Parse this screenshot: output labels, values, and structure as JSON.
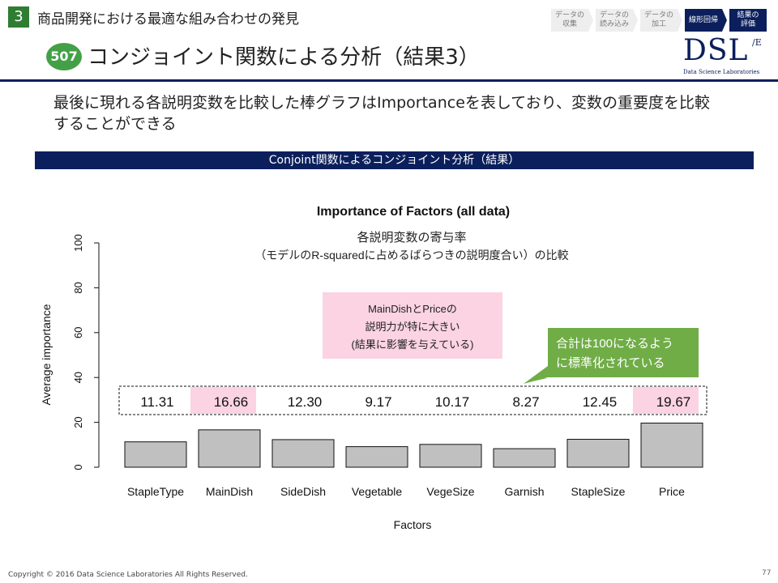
{
  "header": {
    "section_number": "3",
    "section_title": "商品開発における最適な組み合わせの発見",
    "page_badge": "507",
    "page_title": "コンジョイント関数による分析（結果3）",
    "steps": [
      {
        "label": "データの\n収集",
        "active": false
      },
      {
        "label": "データの\n読み込み",
        "active": false
      },
      {
        "label": "データの\n加工",
        "active": false
      },
      {
        "label": "線形回帰",
        "active": true
      },
      {
        "label": "結果の\n評価",
        "active": true
      }
    ],
    "logo": {
      "text": "DSL",
      "sup": "/E",
      "subtitle": "Data Science Laboratories"
    }
  },
  "lead_text": "最後に現れる各説明変数を比較した棒グラフはImportanceを表しており、変数の重要度を比較することができる",
  "banner": "Conjoint関数によるコンジョイント分析（結果）",
  "annotations": {
    "subtitle_line1": "各説明変数の寄与率",
    "subtitle_line2": "（モデルのR-squaredに占めるばらつきの説明度合い）の比較",
    "pink_box": [
      "MainDishとPriceの",
      "説明力が特に大きい",
      "(結果に影響を与えている)"
    ],
    "green_box": [
      "合計は100になるよう",
      "に標準化されている"
    ]
  },
  "chart_data": {
    "type": "bar",
    "title": "Importance of Factors (all data)",
    "xlabel": "Factors",
    "ylabel": "Average importance",
    "categories": [
      "StapleType",
      "MainDish",
      "SideDish",
      "Vegetable",
      "VegeSize",
      "Garnish",
      "StapleSize",
      "Price"
    ],
    "values": [
      11.31,
      16.66,
      12.3,
      9.17,
      10.17,
      8.27,
      12.45,
      19.67
    ],
    "value_labels": [
      "11.31",
      "16.66",
      "12.30",
      "9.17",
      "10.17",
      "8.27",
      "12.45",
      "19.67"
    ],
    "highlighted": [
      "MainDish",
      "Price"
    ],
    "ylim": [
      0,
      100
    ],
    "yticks": [
      0,
      20,
      40,
      60,
      80,
      100
    ],
    "grid": false,
    "colors": {
      "bar": "#c0c0c0",
      "highlight": "#fbd3e3",
      "callout": "#70ad47"
    }
  },
  "footer": {
    "copyright": "Copyright © 2016 Data Science Laboratories All Rights Reserved.",
    "page_number": "77"
  }
}
